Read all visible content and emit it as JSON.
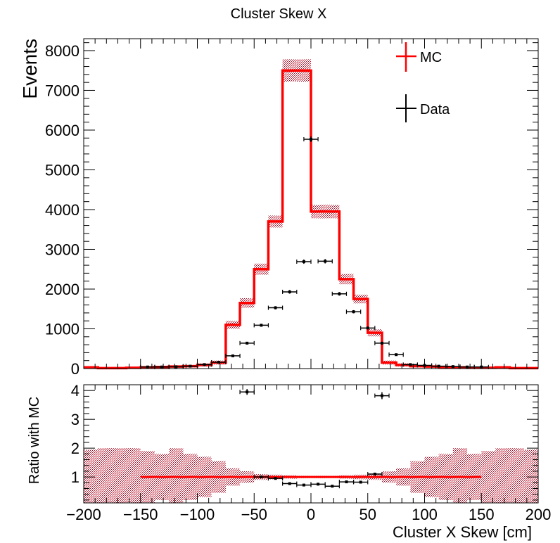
{
  "title": "Cluster Skew X",
  "colors": {
    "mc": "#ff0000",
    "mc_band": "#b0001a",
    "data": "#000000",
    "axis": "#000000"
  },
  "chart_data": [
    {
      "type": "line",
      "name": "main",
      "xlim": [
        -200,
        200
      ],
      "ylim": [
        0,
        8300
      ],
      "ylabel": "Events",
      "yticks": [
        0,
        1000,
        2000,
        3000,
        4000,
        5000,
        6000,
        7000,
        8000
      ],
      "legend": [
        "MC",
        "Data"
      ],
      "legend_position": "top-right",
      "mc_bin_edges": [
        -200,
        -187.5,
        -175,
        -162.5,
        -150,
        -137.5,
        -125,
        -112.5,
        -100,
        -87.5,
        -75,
        -62.5,
        -50,
        -37.5,
        -25,
        -12.5,
        0,
        12.5,
        25,
        37.5,
        50,
        62.5,
        75,
        87.5,
        100,
        112.5,
        125,
        137.5,
        150,
        162.5,
        175,
        187.5,
        200
      ],
      "mc_values": [
        30,
        10,
        10,
        20,
        30,
        40,
        50,
        60,
        90,
        150,
        1100,
        1650,
        2500,
        3700,
        7500,
        7500,
        3950,
        3950,
        2250,
        1750,
        900,
        150,
        90,
        60,
        50,
        40,
        30,
        20,
        20,
        30,
        10,
        10
      ],
      "mc_uncertainty": [
        20,
        10,
        10,
        15,
        20,
        25,
        25,
        30,
        40,
        50,
        100,
        120,
        140,
        150,
        280,
        280,
        170,
        170,
        130,
        110,
        90,
        50,
        40,
        30,
        25,
        25,
        20,
        15,
        15,
        20,
        10,
        10
      ],
      "data_points": [
        {
          "x": -143.75,
          "y": 40,
          "err": 10
        },
        {
          "x": -131.25,
          "y": 40,
          "err": 10
        },
        {
          "x": -118.75,
          "y": 45,
          "err": 10
        },
        {
          "x": -106.25,
          "y": 60,
          "err": 10
        },
        {
          "x": -93.75,
          "y": 100,
          "err": 15
        },
        {
          "x": -81.25,
          "y": 160,
          "err": 15
        },
        {
          "x": -68.75,
          "y": 320,
          "err": 20
        },
        {
          "x": -56.25,
          "y": 640,
          "err": 30
        },
        {
          "x": -43.75,
          "y": 1090,
          "err": 35
        },
        {
          "x": -31.25,
          "y": 1530,
          "err": 40
        },
        {
          "x": -18.75,
          "y": 1930,
          "err": 45
        },
        {
          "x": -6.25,
          "y": 2690,
          "err": 55
        },
        {
          "x": 0,
          "y": 5770,
          "err": 70
        },
        {
          "x": 12.5,
          "y": 2700,
          "err": 55
        },
        {
          "x": 25,
          "y": 1880,
          "err": 45
        },
        {
          "x": 37.5,
          "y": 1430,
          "err": 40
        },
        {
          "x": 50,
          "y": 1020,
          "err": 35
        },
        {
          "x": 62.5,
          "y": 640,
          "err": 30
        },
        {
          "x": 75,
          "y": 350,
          "err": 20
        },
        {
          "x": 87.5,
          "y": 100,
          "err": 15
        },
        {
          "x": 100,
          "y": 80,
          "err": 10
        },
        {
          "x": 112.5,
          "y": 60,
          "err": 10
        },
        {
          "x": 125,
          "y": 50,
          "err": 10
        },
        {
          "x": 137.5,
          "y": 40,
          "err": 10
        },
        {
          "x": 150,
          "y": 40,
          "err": 10
        }
      ],
      "data_xerr": 6.25
    },
    {
      "type": "line",
      "name": "ratio",
      "xlim": [
        -200,
        200
      ],
      "ylim": [
        0.1,
        4.2
      ],
      "xlabel": "Cluster X Skew [cm]",
      "ylabel": "Ratio with MC",
      "xticks": [
        -200,
        -150,
        -100,
        -50,
        0,
        50,
        100,
        150,
        200
      ],
      "xticklabels": [
        "−200",
        "−150",
        "−100",
        "−50",
        "0",
        "50",
        "100",
        "150",
        "200"
      ],
      "yticks": [
        1,
        2,
        3,
        4
      ],
      "mc_ratio_line": {
        "x": [
          -150,
          150
        ],
        "y": 1
      },
      "band_bin_edges": [
        -200,
        -187.5,
        -175,
        -162.5,
        -150,
        -137.5,
        -125,
        -112.5,
        -100,
        -87.5,
        -75,
        -62.5,
        -50,
        -37.5,
        -25,
        -12.5,
        0,
        12.5,
        25,
        37.5,
        50,
        62.5,
        75,
        87.5,
        100,
        112.5,
        125,
        137.5,
        150,
        162.5,
        175,
        187.5,
        200
      ],
      "band_half_width": [
        0.95,
        1.0,
        1.0,
        1.0,
        0.9,
        0.8,
        1.0,
        0.8,
        0.7,
        0.55,
        0.3,
        0.2,
        0.1,
        0.08,
        0.06,
        0.04,
        0.04,
        0.04,
        0.06,
        0.08,
        0.1,
        0.2,
        0.3,
        0.55,
        0.7,
        0.8,
        1.0,
        0.8,
        0.9,
        1.0,
        1.0,
        0.95
      ],
      "data_points": [
        {
          "x": -56.25,
          "y": 3.95,
          "err": 0.1
        },
        {
          "x": -43.75,
          "y": 1.0,
          "err": 0.03
        },
        {
          "x": -31.25,
          "y": 0.95,
          "err": 0.03
        },
        {
          "x": -18.75,
          "y": 0.77,
          "err": 0.02
        },
        {
          "x": -6.25,
          "y": 0.72,
          "err": 0.02
        },
        {
          "x": 6.25,
          "y": 0.75,
          "err": 0.02
        },
        {
          "x": 18.75,
          "y": 0.68,
          "err": 0.02
        },
        {
          "x": 31.25,
          "y": 0.83,
          "err": 0.02
        },
        {
          "x": 43.75,
          "y": 0.82,
          "err": 0.02
        },
        {
          "x": 56.25,
          "y": 1.1,
          "err": 0.04
        },
        {
          "x": 62.5,
          "y": 3.82,
          "err": 0.12
        }
      ],
      "data_xerr": 6.25
    }
  ]
}
